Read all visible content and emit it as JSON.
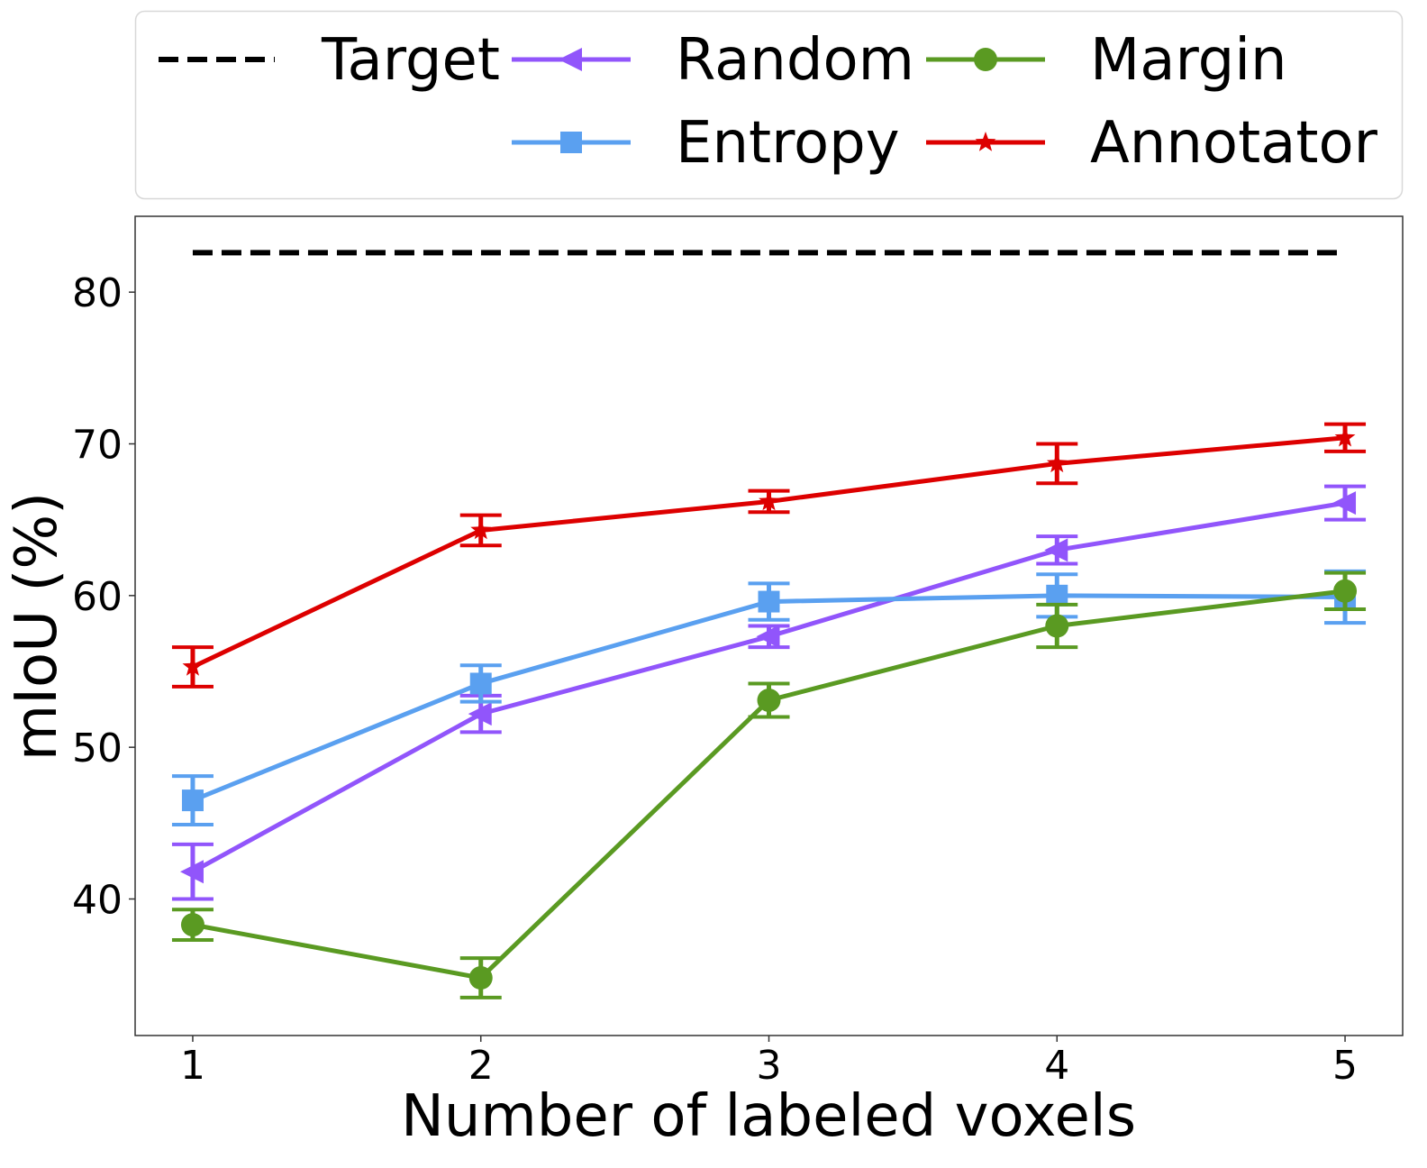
{
  "chart_data": {
    "type": "line",
    "title": "",
    "xlabel": "Number of labeled voxels",
    "ylabel": "mIoU (%)",
    "xlim": [
      0.8,
      5.2
    ],
    "ylim": [
      31,
      85
    ],
    "xticks": [
      1,
      2,
      3,
      4,
      5
    ],
    "yticks": [
      40,
      50,
      60,
      70,
      80
    ],
    "grid": false,
    "legend_placement": "top (above plot)",
    "x": [
      1,
      2,
      3,
      4,
      5
    ],
    "target": {
      "name": "Target",
      "value": 82.6,
      "color": "#000000",
      "style": "dashed"
    },
    "series": [
      {
        "name": "Random",
        "color": "#9155fb",
        "marker": "triangle-left",
        "values": [
          41.8,
          52.2,
          57.3,
          63.0,
          66.1
        ],
        "errors": [
          1.8,
          1.2,
          0.7,
          0.9,
          1.1
        ]
      },
      {
        "name": "Entropy",
        "color": "#5aa0f0",
        "marker": "square",
        "values": [
          46.5,
          54.2,
          59.6,
          60.0,
          59.9
        ],
        "errors": [
          1.6,
          1.2,
          1.2,
          1.4,
          1.7
        ]
      },
      {
        "name": "Margin",
        "color": "#5a9a22",
        "marker": "circle",
        "values": [
          38.3,
          34.8,
          53.1,
          58.0,
          60.3
        ],
        "errors": [
          1.0,
          1.3,
          1.1,
          1.4,
          1.2
        ]
      },
      {
        "name": "Annotator",
        "color": "#dd0000",
        "marker": "star",
        "values": [
          55.3,
          64.3,
          66.2,
          68.7,
          70.4
        ],
        "errors": [
          1.3,
          1.0,
          0.7,
          1.3,
          0.9
        ]
      }
    ]
  }
}
